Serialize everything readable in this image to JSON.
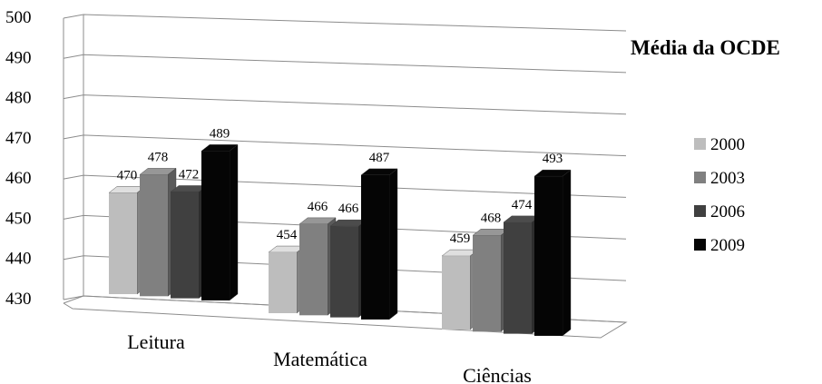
{
  "chart_data": {
    "type": "bar",
    "title": "Média da OCDE",
    "categories": [
      "Leitura",
      "Matemática",
      "Ciências"
    ],
    "series": [
      {
        "name": "2000",
        "values": [
          470,
          454,
          459
        ],
        "color": "#bdbdbd"
      },
      {
        "name": "2003",
        "values": [
          478,
          466,
          468
        ],
        "color": "#808080"
      },
      {
        "name": "2006",
        "values": [
          472,
          466,
          474
        ],
        "color": "#404040"
      },
      {
        "name": "2009",
        "values": [
          489,
          487,
          493
        ],
        "color": "#050505"
      }
    ],
    "yticks": [
      430,
      440,
      450,
      460,
      470,
      480,
      490,
      500
    ],
    "ylim": [
      430,
      500
    ],
    "grid": true,
    "legend_position": "right",
    "style": "3d-clustered-bar"
  }
}
